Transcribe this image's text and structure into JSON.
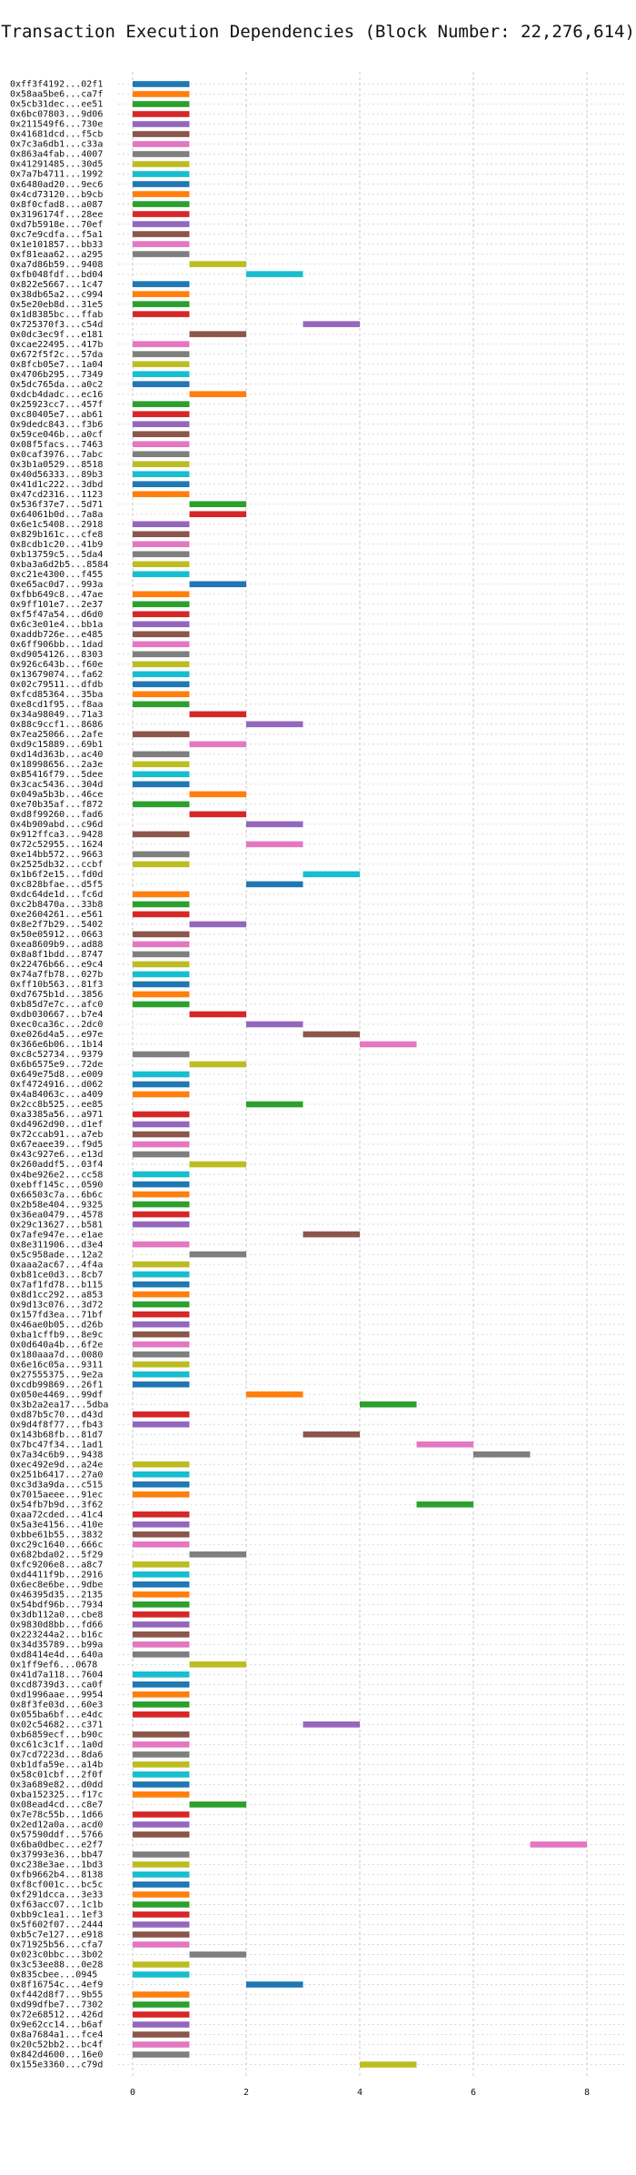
{
  "chart_data": {
    "type": "gantt",
    "title": "Transaction Execution Dependencies (Block Number: 22,276,614)",
    "xlabel": "",
    "ylabel": "",
    "xlim": [
      0,
      8.5
    ],
    "x_ticks": [
      0,
      2,
      4,
      6,
      8
    ],
    "grid": true,
    "legend": "none",
    "palette": [
      "#1f77b4",
      "#ff7f0e",
      "#2ca02c",
      "#d62728",
      "#9467bd",
      "#8c564b",
      "#e377c2",
      "#7f7f7f",
      "#bcbd22",
      "#17becf"
    ],
    "transactions": [
      {
        "label": "0xff3f4192...02f1",
        "start": 0,
        "end": 1
      },
      {
        "label": "0x58aa5be6...ca7f",
        "start": 0,
        "end": 1
      },
      {
        "label": "0x5cb31dec...ee51",
        "start": 0,
        "end": 1
      },
      {
        "label": "0x6bc07803...9d06",
        "start": 0,
        "end": 1
      },
      {
        "label": "0x211549f6...730e",
        "start": 0,
        "end": 1
      },
      {
        "label": "0x41681dcd...f5cb",
        "start": 0,
        "end": 1
      },
      {
        "label": "0x7c3a6db1...c33a",
        "start": 0,
        "end": 1
      },
      {
        "label": "0x863a4fab...4007",
        "start": 0,
        "end": 1
      },
      {
        "label": "0x41291485...30d5",
        "start": 0,
        "end": 1
      },
      {
        "label": "0x7a7b4711...1992",
        "start": 0,
        "end": 1
      },
      {
        "label": "0x6480ad20...9ec6",
        "start": 0,
        "end": 1
      },
      {
        "label": "0x4cd73120...b9cb",
        "start": 0,
        "end": 1
      },
      {
        "label": "0x8f0cfad8...a087",
        "start": 0,
        "end": 1
      },
      {
        "label": "0x3196174f...28ee",
        "start": 0,
        "end": 1
      },
      {
        "label": "0xd7b5918e...70ef",
        "start": 0,
        "end": 1
      },
      {
        "label": "0xc7e9cdfa...f5a1",
        "start": 0,
        "end": 1
      },
      {
        "label": "0x1e101857...bb33",
        "start": 0,
        "end": 1
      },
      {
        "label": "0xf81eaa62...a295",
        "start": 0,
        "end": 1
      },
      {
        "label": "0xa7d86b59...9408",
        "start": 1,
        "end": 2
      },
      {
        "label": "0xfb048fdf...bd04",
        "start": 2,
        "end": 3
      },
      {
        "label": "0x822e5667...1c47",
        "start": 0,
        "end": 1
      },
      {
        "label": "0x38db65a2...c994",
        "start": 0,
        "end": 1
      },
      {
        "label": "0x5e20eb8d...31e5",
        "start": 0,
        "end": 1
      },
      {
        "label": "0x1d8385bc...ffab",
        "start": 0,
        "end": 1
      },
      {
        "label": "0x725370f3...c54d",
        "start": 3,
        "end": 4
      },
      {
        "label": "0x0dc3ec9f...e181",
        "start": 1,
        "end": 2
      },
      {
        "label": "0xcae22495...417b",
        "start": 0,
        "end": 1
      },
      {
        "label": "0x672f5f2c...57da",
        "start": 0,
        "end": 1
      },
      {
        "label": "0x8fcb05e7...1a04",
        "start": 0,
        "end": 1
      },
      {
        "label": "0x4706b295...7349",
        "start": 0,
        "end": 1
      },
      {
        "label": "0x5dc765da...a0c2",
        "start": 0,
        "end": 1
      },
      {
        "label": "0xdcb4dadc...ec16",
        "start": 1,
        "end": 2
      },
      {
        "label": "0x25923cc7...457f",
        "start": 0,
        "end": 1
      },
      {
        "label": "0xc80405e7...ab61",
        "start": 0,
        "end": 1
      },
      {
        "label": "0x9dedc843...f3b6",
        "start": 0,
        "end": 1
      },
      {
        "label": "0x59ce046b...a0cf",
        "start": 0,
        "end": 1
      },
      {
        "label": "0x08f5facs...7463",
        "start": 0,
        "end": 1
      },
      {
        "label": "0x0caf3976...7abc",
        "start": 0,
        "end": 1
      },
      {
        "label": "0x3b1a0529...8518",
        "start": 0,
        "end": 1
      },
      {
        "label": "0x40d56333...89b3",
        "start": 0,
        "end": 1
      },
      {
        "label": "0x41d1c222...3dbd",
        "start": 0,
        "end": 1
      },
      {
        "label": "0x47cd2316...1123",
        "start": 0,
        "end": 1
      },
      {
        "label": "0x536f37e7...5d71",
        "start": 1,
        "end": 2
      },
      {
        "label": "0x64061b0d...7a8a",
        "start": 1,
        "end": 2
      },
      {
        "label": "0x6e1c5408...2918",
        "start": 0,
        "end": 1
      },
      {
        "label": "0x829b161c...cfe8",
        "start": 0,
        "end": 1
      },
      {
        "label": "0x8cdb1c20...41b9",
        "start": 0,
        "end": 1
      },
      {
        "label": "0xb13759c5...5da4",
        "start": 0,
        "end": 1
      },
      {
        "label": "0xba3a6d2b5...8584",
        "start": 0,
        "end": 1
      },
      {
        "label": "0xc21e4300...f455",
        "start": 0,
        "end": 1
      },
      {
        "label": "0xe65ac0d7...993a",
        "start": 1,
        "end": 2
      },
      {
        "label": "0xfbb649c8...47ae",
        "start": 0,
        "end": 1
      },
      {
        "label": "0x9ff101e7...2e37",
        "start": 0,
        "end": 1
      },
      {
        "label": "0xf5f47a54...d6d0",
        "start": 0,
        "end": 1
      },
      {
        "label": "0x6c3e01e4...bb1a",
        "start": 0,
        "end": 1
      },
      {
        "label": "0xaddb726e...e485",
        "start": 0,
        "end": 1
      },
      {
        "label": "0x6ff906bb...1dad",
        "start": 0,
        "end": 1
      },
      {
        "label": "0xd9054126...8303",
        "start": 0,
        "end": 1
      },
      {
        "label": "0x926c643b...f60e",
        "start": 0,
        "end": 1
      },
      {
        "label": "0x13679074...fa62",
        "start": 0,
        "end": 1
      },
      {
        "label": "0x02c79511...dfdb",
        "start": 0,
        "end": 1
      },
      {
        "label": "0xfcd85364...35ba",
        "start": 0,
        "end": 1
      },
      {
        "label": "0xe8cd1f95...f8aa",
        "start": 0,
        "end": 1
      },
      {
        "label": "0x34a98049...71a3",
        "start": 1,
        "end": 2
      },
      {
        "label": "0x88c9ccf1...8686",
        "start": 2,
        "end": 3
      },
      {
        "label": "0x7ea25066...2afe",
        "start": 0,
        "end": 1
      },
      {
        "label": "0xd9c15889...69b1",
        "start": 1,
        "end": 2
      },
      {
        "label": "0xd14d363b...ac40",
        "start": 0,
        "end": 1
      },
      {
        "label": "0x18998656...2a3e",
        "start": 0,
        "end": 1
      },
      {
        "label": "0x85416f79...5dee",
        "start": 0,
        "end": 1
      },
      {
        "label": "0x3cac5436...304d",
        "start": 0,
        "end": 1
      },
      {
        "label": "0x049a5b3b...46ce",
        "start": 1,
        "end": 2
      },
      {
        "label": "0xe70b35af...f872",
        "start": 0,
        "end": 1
      },
      {
        "label": "0xd8f99260...fad6",
        "start": 1,
        "end": 2
      },
      {
        "label": "0x4b909abd...c96d",
        "start": 2,
        "end": 3
      },
      {
        "label": "0x912ffca3...9428",
        "start": 0,
        "end": 1
      },
      {
        "label": "0x72c52955...1624",
        "start": 2,
        "end": 3
      },
      {
        "label": "0xe14bb572...9663",
        "start": 0,
        "end": 1
      },
      {
        "label": "0x2525db32...ccbf",
        "start": 0,
        "end": 1
      },
      {
        "label": "0x1b6f2e15...fd0d",
        "start": 3,
        "end": 4
      },
      {
        "label": "0xc828bfae...d5f5",
        "start": 2,
        "end": 3
      },
      {
        "label": "0xdc64de1d...fc6d",
        "start": 0,
        "end": 1
      },
      {
        "label": "0xc2b8470a...33b8",
        "start": 0,
        "end": 1
      },
      {
        "label": "0xe2604261...e561",
        "start": 0,
        "end": 1
      },
      {
        "label": "0x8e2f7b29...5402",
        "start": 1,
        "end": 2
      },
      {
        "label": "0x50e05912...0663",
        "start": 0,
        "end": 1
      },
      {
        "label": "0xea8609b9...ad88",
        "start": 0,
        "end": 1
      },
      {
        "label": "0x8a8f1bdd...8747",
        "start": 0,
        "end": 1
      },
      {
        "label": "0x22476b66...e9c4",
        "start": 0,
        "end": 1
      },
      {
        "label": "0x74a7fb78...027b",
        "start": 0,
        "end": 1
      },
      {
        "label": "0xff10b563...81f3",
        "start": 0,
        "end": 1
      },
      {
        "label": "0xd7675b1d...3856",
        "start": 0,
        "end": 1
      },
      {
        "label": "0xb85d7e7c...afc0",
        "start": 0,
        "end": 1
      },
      {
        "label": "0xdb030667...b7e4",
        "start": 1,
        "end": 2
      },
      {
        "label": "0xec0ca36c...2dc0",
        "start": 2,
        "end": 3
      },
      {
        "label": "0xe026d4a5...e97e",
        "start": 3,
        "end": 4
      },
      {
        "label": "0x366e6b06...1b14",
        "start": 4,
        "end": 5
      },
      {
        "label": "0xc8c52734...9379",
        "start": 0,
        "end": 1
      },
      {
        "label": "0x6b6575e9...72de",
        "start": 1,
        "end": 2
      },
      {
        "label": "0x649e75d8...e009",
        "start": 0,
        "end": 1
      },
      {
        "label": "0xf4724916...d062",
        "start": 0,
        "end": 1
      },
      {
        "label": "0x4a84063c...a409",
        "start": 0,
        "end": 1
      },
      {
        "label": "0x2cc8b525...ee85",
        "start": 2,
        "end": 3
      },
      {
        "label": "0xa3385a56...a971",
        "start": 0,
        "end": 1
      },
      {
        "label": "0xd4962d90...d1ef",
        "start": 0,
        "end": 1
      },
      {
        "label": "0x72ccab91...a7eb",
        "start": 0,
        "end": 1
      },
      {
        "label": "0x67eaee39...f9d5",
        "start": 0,
        "end": 1
      },
      {
        "label": "0x43c927e6...e13d",
        "start": 0,
        "end": 1
      },
      {
        "label": "0x260addf5...03f4",
        "start": 1,
        "end": 2
      },
      {
        "label": "0x4be926e2...cc58",
        "start": 0,
        "end": 1
      },
      {
        "label": "0xebff145c...0590",
        "start": 0,
        "end": 1
      },
      {
        "label": "0x66503c7a...6b6c",
        "start": 0,
        "end": 1
      },
      {
        "label": "0x2b58e404...9325",
        "start": 0,
        "end": 1
      },
      {
        "label": "0x36ea0479...4578",
        "start": 0,
        "end": 1
      },
      {
        "label": "0x29c13627...b581",
        "start": 0,
        "end": 1
      },
      {
        "label": "0x7afe947e...e1ae",
        "start": 3,
        "end": 4
      },
      {
        "label": "0x8e311906...d3e4",
        "start": 0,
        "end": 1
      },
      {
        "label": "0x5c958ade...12a2",
        "start": 1,
        "end": 2
      },
      {
        "label": "0xaaa2ac67...4f4a",
        "start": 0,
        "end": 1
      },
      {
        "label": "0xb81ce0d3...8cb7",
        "start": 0,
        "end": 1
      },
      {
        "label": "0x7af1fd78...b115",
        "start": 0,
        "end": 1
      },
      {
        "label": "0x8d1cc292...a853",
        "start": 0,
        "end": 1
      },
      {
        "label": "0x9d13c076...3d72",
        "start": 0,
        "end": 1
      },
      {
        "label": "0x157fd3ea...71bf",
        "start": 0,
        "end": 1
      },
      {
        "label": "0x46ae0b05...d26b",
        "start": 0,
        "end": 1
      },
      {
        "label": "0xba1cffb9...8e9c",
        "start": 0,
        "end": 1
      },
      {
        "label": "0x0d640a4b...6f2e",
        "start": 0,
        "end": 1
      },
      {
        "label": "0x180aaa7d...0080",
        "start": 0,
        "end": 1
      },
      {
        "label": "0x6e16c05a...9311",
        "start": 0,
        "end": 1
      },
      {
        "label": "0x27555375...9e2a",
        "start": 0,
        "end": 1
      },
      {
        "label": "0xcdb99869...26f1",
        "start": 0,
        "end": 1
      },
      {
        "label": "0x050e4469...99df",
        "start": 2,
        "end": 3
      },
      {
        "label": "0x3b2a2ea17...5dba",
        "start": 4,
        "end": 5
      },
      {
        "label": "0xd87b5c70...d43d",
        "start": 0,
        "end": 1
      },
      {
        "label": "0x9d4f8f77...fb43",
        "start": 0,
        "end": 1
      },
      {
        "label": "0x143b68fb...81d7",
        "start": 3,
        "end": 4
      },
      {
        "label": "0x7bc47f34...1ad1",
        "start": 5,
        "end": 6
      },
      {
        "label": "0x7a34c6b9...9438",
        "start": 6,
        "end": 7
      },
      {
        "label": "0xec492e9d...a24e",
        "start": 0,
        "end": 1
      },
      {
        "label": "0x251b6417...27a0",
        "start": 0,
        "end": 1
      },
      {
        "label": "0xc3d3a9da...c515",
        "start": 0,
        "end": 1
      },
      {
        "label": "0x7015aeee...91ec",
        "start": 0,
        "end": 1
      },
      {
        "label": "0x54fb7b9d...3f62",
        "start": 5,
        "end": 6
      },
      {
        "label": "0xaa72cded...41c4",
        "start": 0,
        "end": 1
      },
      {
        "label": "0x5a3e4156...410e",
        "start": 0,
        "end": 1
      },
      {
        "label": "0xbbe61b55...3832",
        "start": 0,
        "end": 1
      },
      {
        "label": "0xc29c1640...666c",
        "start": 0,
        "end": 1
      },
      {
        "label": "0x682bda02...5f29",
        "start": 1,
        "end": 2
      },
      {
        "label": "0xfc9206e8...a8c7",
        "start": 0,
        "end": 1
      },
      {
        "label": "0xd4411f9b...2916",
        "start": 0,
        "end": 1
      },
      {
        "label": "0x6ec8e6be...9dbe",
        "start": 0,
        "end": 1
      },
      {
        "label": "0x46395d35...2135",
        "start": 0,
        "end": 1
      },
      {
        "label": "0x54bdf96b...7934",
        "start": 0,
        "end": 1
      },
      {
        "label": "0x3db112a0...cbe8",
        "start": 0,
        "end": 1
      },
      {
        "label": "0x9830d8bb...fd66",
        "start": 0,
        "end": 1
      },
      {
        "label": "0x223244a2...b16c",
        "start": 0,
        "end": 1
      },
      {
        "label": "0x34d35789...b99a",
        "start": 0,
        "end": 1
      },
      {
        "label": "0xd8414e4d...640a",
        "start": 0,
        "end": 1
      },
      {
        "label": "0x1ff9ef6...0678",
        "start": 1,
        "end": 2
      },
      {
        "label": "0x41d7a118...7604",
        "start": 0,
        "end": 1
      },
      {
        "label": "0xcd8739d3...ca0f",
        "start": 0,
        "end": 1
      },
      {
        "label": "0xd1996aae...9954",
        "start": 0,
        "end": 1
      },
      {
        "label": "0x8f3fe03d...60e3",
        "start": 0,
        "end": 1
      },
      {
        "label": "0x055ba6bf...e4dc",
        "start": 0,
        "end": 1
      },
      {
        "label": "0x02c54682...c371",
        "start": 3,
        "end": 4
      },
      {
        "label": "0xb6859ecf...b90c",
        "start": 0,
        "end": 1
      },
      {
        "label": "0xc61c3c1f...1a0d",
        "start": 0,
        "end": 1
      },
      {
        "label": "0x7cd7223d...8da6",
        "start": 0,
        "end": 1
      },
      {
        "label": "0xb1dfa59e...a14b",
        "start": 0,
        "end": 1
      },
      {
        "label": "0x58c01cbf...2f0f",
        "start": 0,
        "end": 1
      },
      {
        "label": "0x3a689e82...d0dd",
        "start": 0,
        "end": 1
      },
      {
        "label": "0xba152325...f17c",
        "start": 0,
        "end": 1
      },
      {
        "label": "0x08ead4cd...c8e7",
        "start": 1,
        "end": 2
      },
      {
        "label": "0x7e78c55b...1d66",
        "start": 0,
        "end": 1
      },
      {
        "label": "0x2ed12a0a...acd0",
        "start": 0,
        "end": 1
      },
      {
        "label": "0x57590ddf...5766",
        "start": 0,
        "end": 1
      },
      {
        "label": "0x6ba0dbec...e2f7",
        "start": 7,
        "end": 8
      },
      {
        "label": "0x37993e36...bb47",
        "start": 0,
        "end": 1
      },
      {
        "label": "0xc238e3ae...1bd3",
        "start": 0,
        "end": 1
      },
      {
        "label": "0xfb9662b4...8138",
        "start": 0,
        "end": 1
      },
      {
        "label": "0xf8cf001c...bc5c",
        "start": 0,
        "end": 1
      },
      {
        "label": "0xf291dcca...3e33",
        "start": 0,
        "end": 1
      },
      {
        "label": "0xf63acc07...1c1b",
        "start": 0,
        "end": 1
      },
      {
        "label": "0xbb9c1ea1...1ef3",
        "start": 0,
        "end": 1
      },
      {
        "label": "0x5f602f07...2444",
        "start": 0,
        "end": 1
      },
      {
        "label": "0xb5c7e127...e918",
        "start": 0,
        "end": 1
      },
      {
        "label": "0x71925b56...cfa7",
        "start": 0,
        "end": 1
      },
      {
        "label": "0x023c0bbc...3b02",
        "start": 1,
        "end": 2
      },
      {
        "label": "0x3c53ee88...0e28",
        "start": 0,
        "end": 1
      },
      {
        "label": "0x835cbee...0945",
        "start": 0,
        "end": 1
      },
      {
        "label": "0x8f16754c...4ef9",
        "start": 2,
        "end": 3
      },
      {
        "label": "0xf442d8f7...9b55",
        "start": 0,
        "end": 1
      },
      {
        "label": "0xd99dfbe7...7302",
        "start": 0,
        "end": 1
      },
      {
        "label": "0x72e68512...426d",
        "start": 0,
        "end": 1
      },
      {
        "label": "0x9e62cc14...b6af",
        "start": 0,
        "end": 1
      },
      {
        "label": "0x8a7684a1...fce4",
        "start": 0,
        "end": 1
      },
      {
        "label": "0x20c52bb2...bc4f",
        "start": 0,
        "end": 1
      },
      {
        "label": "0x842d4600...16e0",
        "start": 0,
        "end": 1
      },
      {
        "label": "0x155e3360...c79d",
        "start": 4,
        "end": 5
      }
    ]
  }
}
